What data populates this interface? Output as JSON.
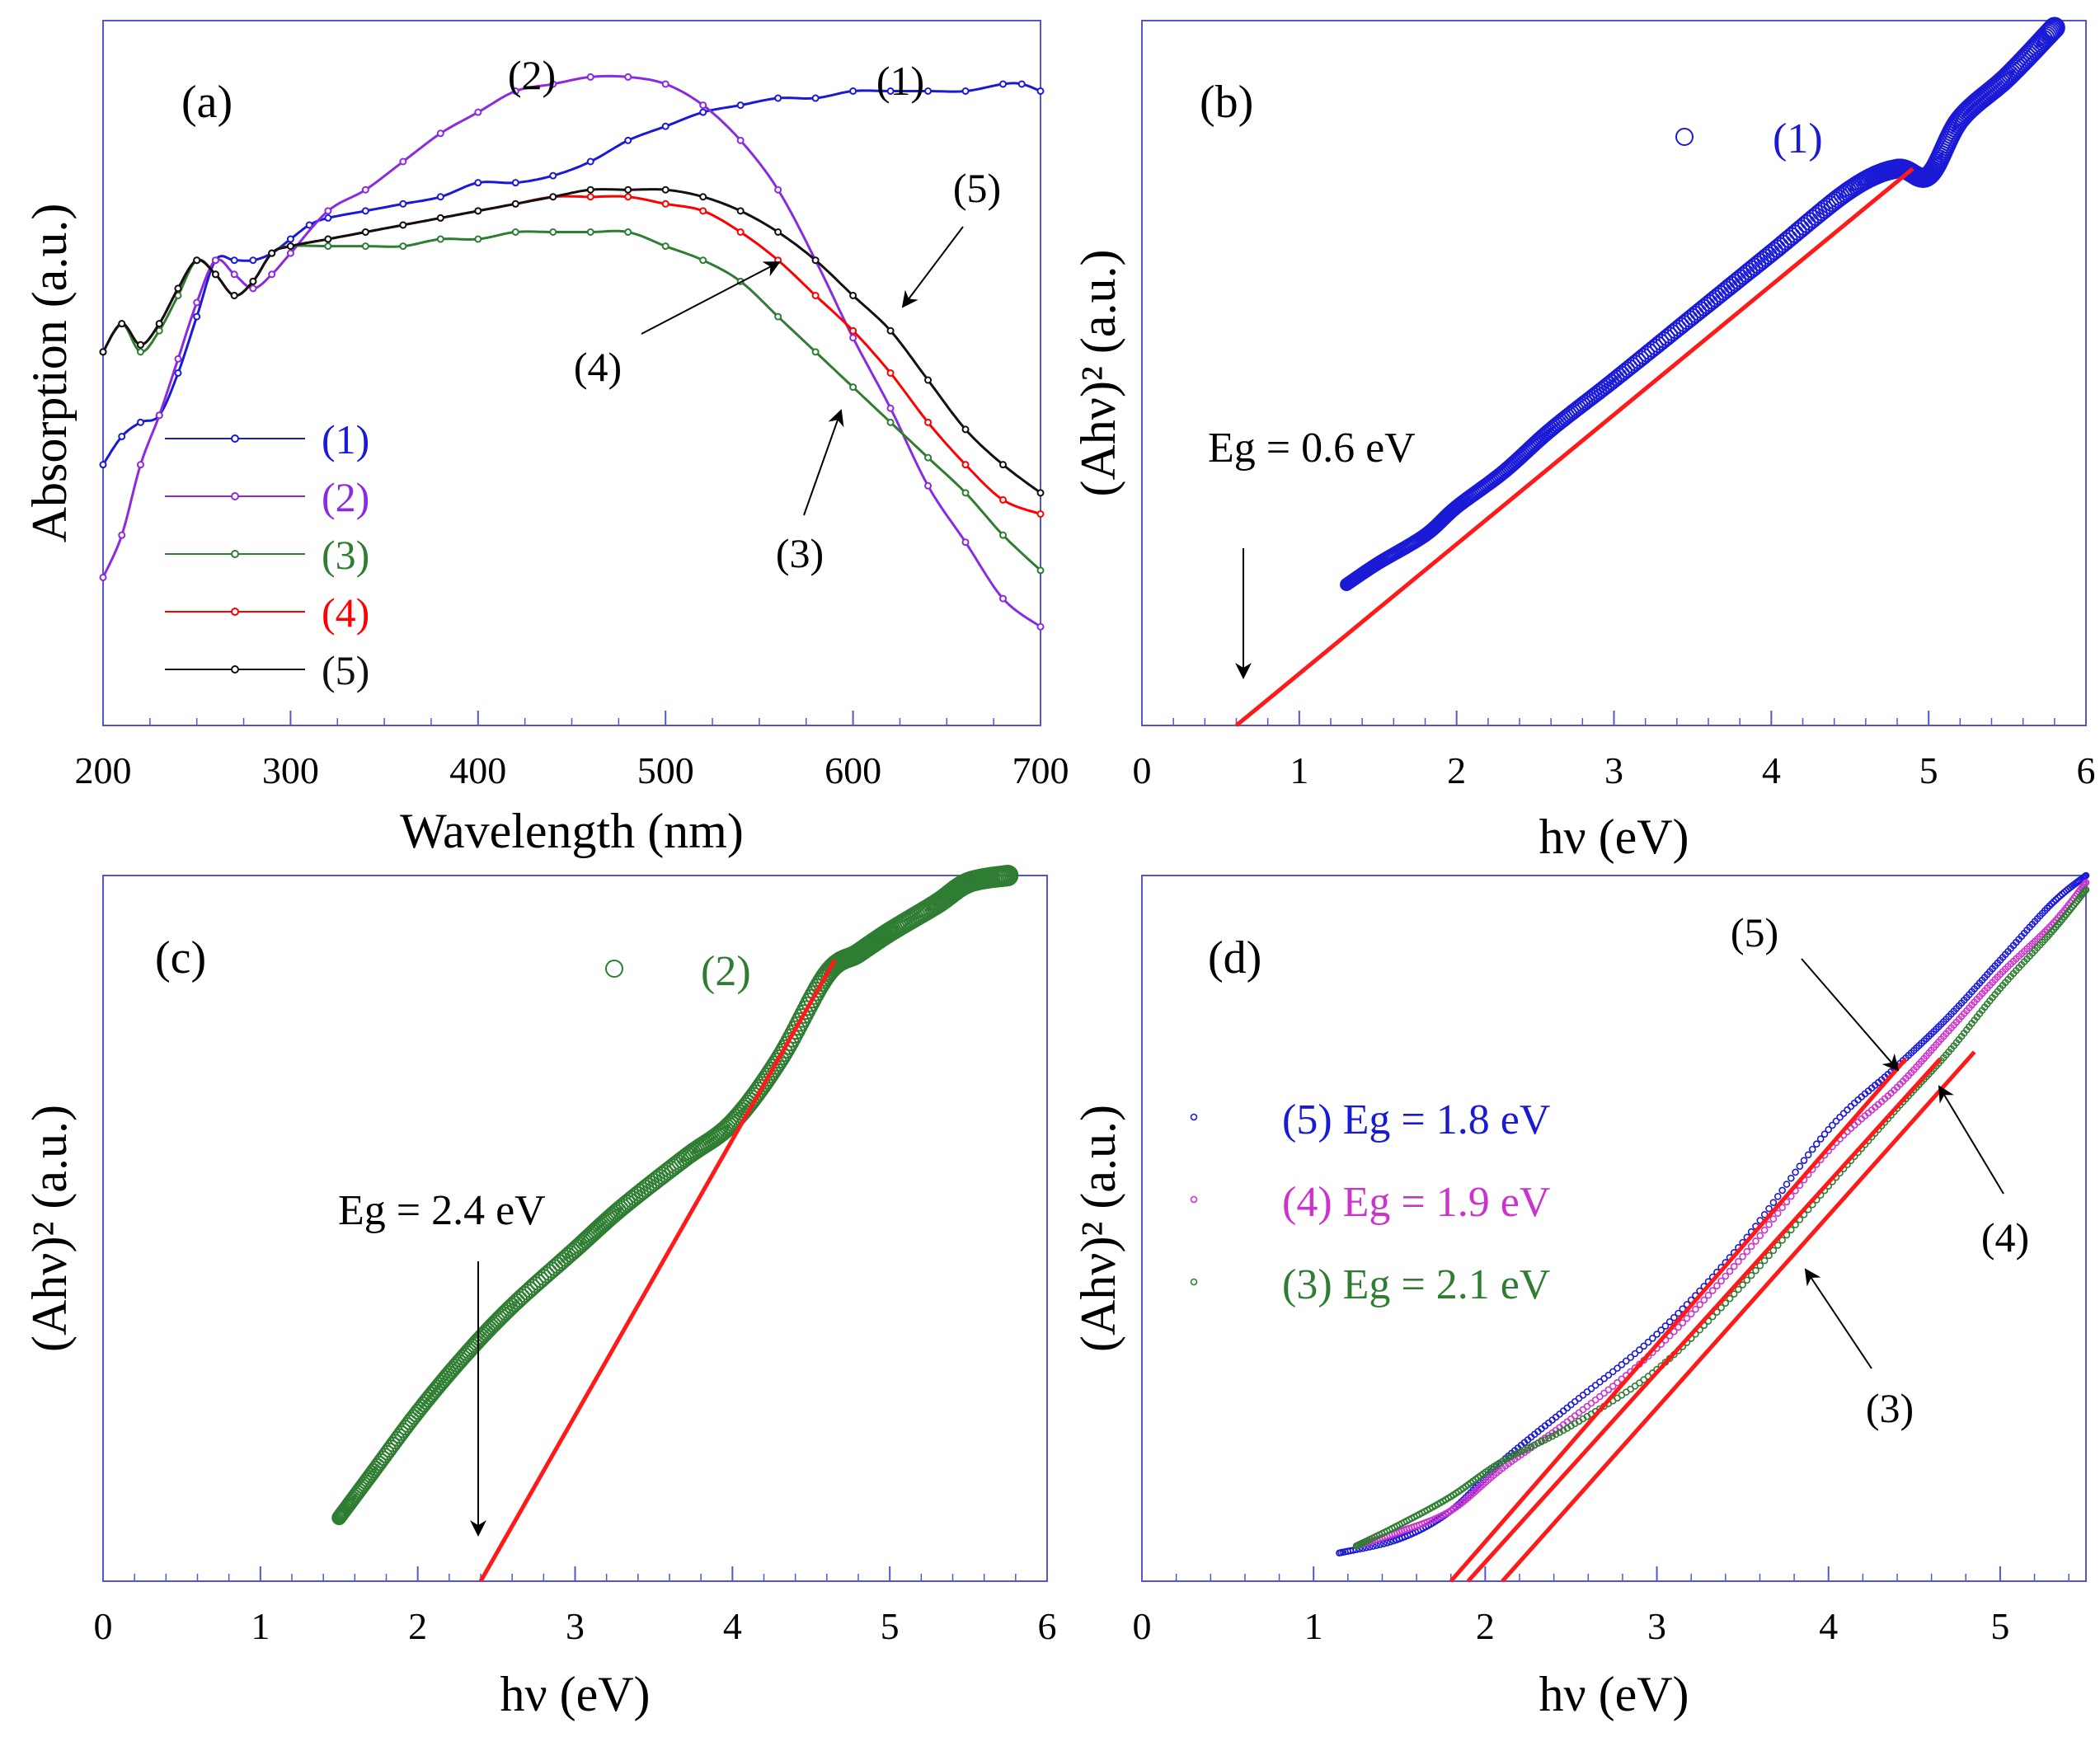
{
  "figure": {
    "panels": [
      "a",
      "b",
      "c",
      "d"
    ]
  },
  "colors": {
    "c1": "#1a1ad6",
    "c2": "#8a2be2",
    "c3": "#2e7d32",
    "c4": "#ff0000",
    "c5": "#111111",
    "fit": "#ff1a1a",
    "axis": "#5555cc",
    "d4": "#cc33cc"
  },
  "chart_data": [
    {
      "id": "a",
      "type": "line",
      "panel_label": "(a)",
      "xlabel": "Wavelength (nm)",
      "ylabel": "Absorption (a.u.)",
      "xlim": [
        200,
        700
      ],
      "ylim": [
        0,
        1
      ],
      "xticks": [
        200,
        300,
        400,
        500,
        600,
        700
      ],
      "xtick_labels": [
        "200",
        "300",
        "400",
        "500",
        "600",
        "700"
      ],
      "legend": {
        "position": "lower-left",
        "labels": [
          "(1)",
          "(2)",
          "(3)",
          "(4)",
          "(5)"
        ]
      },
      "series": [
        {
          "name": "(1)",
          "color": "c1",
          "x": [
            200,
            210,
            220,
            230,
            240,
            250,
            260,
            270,
            280,
            290,
            300,
            310,
            320,
            340,
            360,
            380,
            400,
            420,
            440,
            460,
            480,
            500,
            520,
            540,
            560,
            580,
            600,
            620,
            640,
            660,
            680,
            690,
            700
          ],
          "y": [
            0.37,
            0.41,
            0.43,
            0.44,
            0.5,
            0.58,
            0.66,
            0.66,
            0.66,
            0.67,
            0.69,
            0.71,
            0.72,
            0.73,
            0.74,
            0.75,
            0.77,
            0.77,
            0.78,
            0.8,
            0.83,
            0.85,
            0.87,
            0.88,
            0.89,
            0.89,
            0.9,
            0.9,
            0.9,
            0.9,
            0.91,
            0.91,
            0.9
          ]
        },
        {
          "name": "(2)",
          "color": "c2",
          "x": [
            200,
            210,
            220,
            230,
            240,
            250,
            260,
            270,
            280,
            290,
            300,
            320,
            340,
            360,
            380,
            400,
            420,
            440,
            460,
            480,
            500,
            520,
            540,
            560,
            580,
            600,
            620,
            640,
            660,
            680,
            700
          ],
          "y": [
            0.21,
            0.27,
            0.37,
            0.44,
            0.52,
            0.6,
            0.66,
            0.64,
            0.62,
            0.64,
            0.67,
            0.73,
            0.76,
            0.8,
            0.84,
            0.87,
            0.9,
            0.91,
            0.92,
            0.92,
            0.91,
            0.88,
            0.83,
            0.76,
            0.66,
            0.55,
            0.45,
            0.34,
            0.26,
            0.18,
            0.14
          ]
        },
        {
          "name": "(3)",
          "color": "c3",
          "x": [
            200,
            210,
            220,
            230,
            240,
            250,
            260,
            270,
            280,
            290,
            300,
            320,
            340,
            360,
            380,
            400,
            420,
            440,
            460,
            480,
            500,
            520,
            540,
            560,
            580,
            600,
            620,
            640,
            660,
            680,
            700
          ],
          "y": [
            0.53,
            0.57,
            0.53,
            0.56,
            0.61,
            0.66,
            0.64,
            0.61,
            0.63,
            0.67,
            0.68,
            0.68,
            0.68,
            0.68,
            0.69,
            0.69,
            0.7,
            0.7,
            0.7,
            0.7,
            0.68,
            0.66,
            0.63,
            0.58,
            0.53,
            0.48,
            0.43,
            0.38,
            0.33,
            0.27,
            0.22
          ]
        },
        {
          "name": "(4)",
          "color": "c4",
          "x": [
            200,
            210,
            220,
            230,
            240,
            250,
            260,
            270,
            280,
            290,
            300,
            320,
            340,
            360,
            380,
            400,
            420,
            440,
            460,
            480,
            500,
            520,
            540,
            560,
            580,
            600,
            620,
            640,
            660,
            680,
            700
          ],
          "y": [
            0.53,
            0.57,
            0.54,
            0.57,
            0.62,
            0.66,
            0.64,
            0.61,
            0.63,
            0.67,
            0.68,
            0.69,
            0.7,
            0.71,
            0.72,
            0.73,
            0.74,
            0.75,
            0.75,
            0.75,
            0.74,
            0.73,
            0.7,
            0.66,
            0.61,
            0.56,
            0.5,
            0.43,
            0.37,
            0.32,
            0.3
          ]
        },
        {
          "name": "(5)",
          "color": "c5",
          "x": [
            200,
            210,
            220,
            230,
            240,
            250,
            260,
            270,
            280,
            290,
            300,
            320,
            340,
            360,
            380,
            400,
            420,
            440,
            460,
            480,
            500,
            520,
            540,
            560,
            580,
            600,
            620,
            640,
            660,
            680,
            700
          ],
          "y": [
            0.53,
            0.57,
            0.54,
            0.57,
            0.62,
            0.66,
            0.64,
            0.61,
            0.63,
            0.67,
            0.68,
            0.69,
            0.7,
            0.71,
            0.72,
            0.73,
            0.74,
            0.75,
            0.76,
            0.76,
            0.76,
            0.75,
            0.73,
            0.7,
            0.66,
            0.61,
            0.56,
            0.49,
            0.42,
            0.37,
            0.33
          ]
        }
      ],
      "annotations": [
        "(1)",
        "(2)",
        "(3)",
        "(4)",
        "(5)"
      ]
    },
    {
      "id": "b",
      "type": "scatter",
      "panel_label": "(b)",
      "xlabel": "hν (eV)",
      "ylabel": "(Ahν)² (a.u.)",
      "xlim": [
        0,
        6
      ],
      "ylim": [
        0,
        1
      ],
      "xticks": [
        0,
        1,
        2,
        3,
        4,
        5,
        6
      ],
      "xtick_labels": [
        "0",
        "1",
        "2",
        "3",
        "4",
        "5",
        "6"
      ],
      "legend_label": "(1)",
      "annotation": "Eg = 0.6 eV",
      "series": [
        {
          "name": "(1)",
          "color": "c1",
          "x": [
            1.3,
            1.5,
            1.8,
            2.0,
            2.3,
            2.6,
            3.0,
            3.5,
            4.0,
            4.5,
            4.8,
            5.0,
            5.2,
            5.5,
            5.8
          ],
          "y": [
            0.2,
            0.23,
            0.27,
            0.31,
            0.36,
            0.42,
            0.49,
            0.58,
            0.67,
            0.76,
            0.79,
            0.78,
            0.86,
            0.92,
            0.99
          ]
        }
      ],
      "fit_line": {
        "x": [
          0.6,
          4.9
        ],
        "y": [
          0.0,
          0.79
        ],
        "Eg": 0.6
      }
    },
    {
      "id": "c",
      "type": "scatter",
      "panel_label": "(c)",
      "xlabel": "hν (eV)",
      "ylabel": "(Ahν)² (a.u.)",
      "xlim": [
        0,
        6
      ],
      "ylim": [
        0,
        1
      ],
      "xticks": [
        0,
        1,
        2,
        3,
        4,
        5,
        6
      ],
      "xtick_labels": [
        "0",
        "1",
        "2",
        "3",
        "4",
        "5",
        "6"
      ],
      "legend_label": "(2)",
      "annotation": "Eg = 2.4 eV",
      "series": [
        {
          "name": "(2)",
          "color": "c3",
          "x": [
            1.5,
            1.7,
            2.0,
            2.3,
            2.6,
            3.0,
            3.3,
            3.7,
            4.0,
            4.3,
            4.6,
            4.8,
            5.0,
            5.3,
            5.5,
            5.75
          ],
          "y": [
            0.09,
            0.15,
            0.24,
            0.32,
            0.39,
            0.47,
            0.53,
            0.6,
            0.65,
            0.74,
            0.86,
            0.89,
            0.92,
            0.96,
            0.99,
            1.0
          ]
        }
      ],
      "fit_line": {
        "x": [
          2.4,
          4.65
        ],
        "y": [
          0.0,
          0.88
        ],
        "Eg": 2.4
      }
    },
    {
      "id": "d",
      "type": "scatter",
      "panel_label": "(d)",
      "xlabel": "hν (eV)",
      "ylabel": "(Ahν)² (a.u.)",
      "xlim": [
        0,
        5.5
      ],
      "ylim": [
        0,
        1
      ],
      "xticks": [
        0,
        1,
        2,
        3,
        4,
        5
      ],
      "xtick_labels": [
        "0",
        "1",
        "2",
        "3",
        "4",
        "5"
      ],
      "legend": {
        "position": "left",
        "labels": [
          "(5) Eg = 1.8 eV",
          "(4) Eg = 1.9 eV",
          "(3) Eg = 2.1 eV"
        ]
      },
      "annotations": [
        "(5)",
        "(4)",
        "(3)"
      ],
      "series": [
        {
          "name": "(5)",
          "color": "c1",
          "Eg": 1.8,
          "x": [
            1.15,
            1.5,
            1.8,
            2.1,
            2.5,
            3.0,
            3.5,
            4.0,
            4.4,
            4.7,
            5.0,
            5.3,
            5.5
          ],
          "y": [
            0.04,
            0.06,
            0.1,
            0.17,
            0.25,
            0.35,
            0.48,
            0.64,
            0.73,
            0.8,
            0.88,
            0.96,
            1.0
          ]
        },
        {
          "name": "(4)",
          "color": "d4",
          "Eg": 1.9,
          "x": [
            1.25,
            1.5,
            1.8,
            2.1,
            2.5,
            3.0,
            3.5,
            4.0,
            4.4,
            4.7,
            5.0,
            5.3,
            5.5
          ],
          "y": [
            0.05,
            0.07,
            0.1,
            0.16,
            0.23,
            0.33,
            0.46,
            0.61,
            0.7,
            0.78,
            0.86,
            0.93,
            0.99
          ]
        },
        {
          "name": "(3)",
          "color": "c3",
          "Eg": 2.1,
          "x": [
            1.25,
            1.5,
            1.8,
            2.1,
            2.5,
            3.0,
            3.5,
            4.0,
            4.4,
            4.7,
            5.0,
            5.3,
            5.5
          ],
          "y": [
            0.05,
            0.08,
            0.12,
            0.17,
            0.22,
            0.3,
            0.42,
            0.56,
            0.67,
            0.75,
            0.84,
            0.92,
            0.98
          ]
        }
      ],
      "fit_lines": [
        {
          "name": "(5)",
          "x": [
            1.8,
            4.45
          ],
          "y": [
            0.0,
            0.74
          ]
        },
        {
          "name": "(4)",
          "x": [
            1.9,
            4.65
          ],
          "y": [
            0.0,
            0.74
          ]
        },
        {
          "name": "(3)",
          "x": [
            2.1,
            4.85
          ],
          "y": [
            0.0,
            0.75
          ]
        }
      ]
    }
  ]
}
